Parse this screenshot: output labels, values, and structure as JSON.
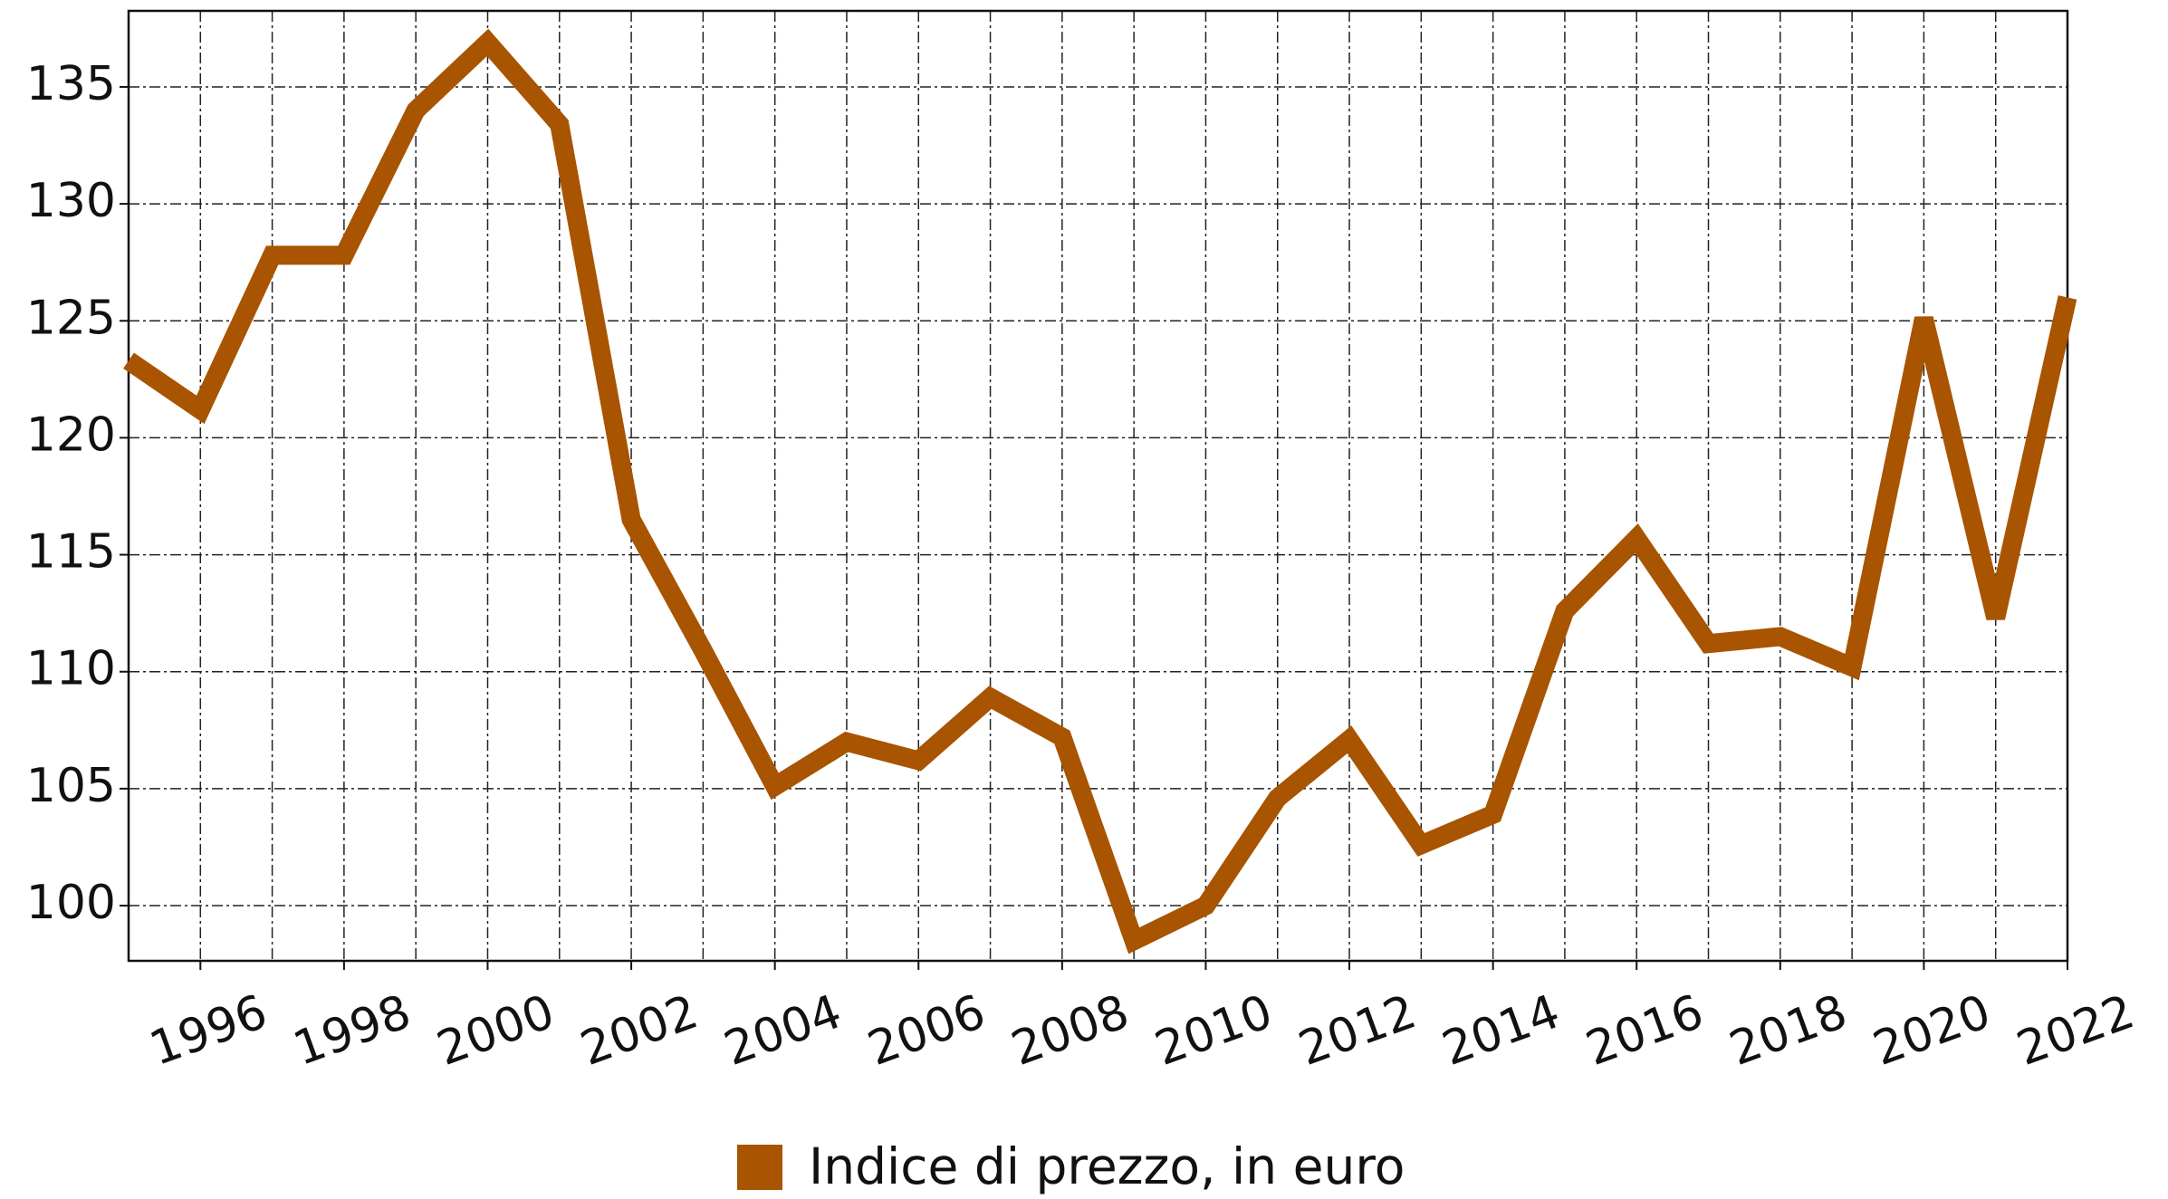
{
  "chart_data": {
    "type": "line",
    "x": [
      1995,
      1996,
      1997,
      1998,
      1999,
      2000,
      2001,
      2002,
      2003,
      2004,
      2005,
      2006,
      2007,
      2008,
      2009,
      2010,
      2011,
      2012,
      2013,
      2014,
      2015,
      2016,
      2017,
      2018,
      2019,
      2020,
      2021,
      2022
    ],
    "series": [
      {
        "name": "Indice di prezzo, in euro",
        "color": "#a85400",
        "values": [
          123.3,
          121.2,
          127.8,
          127.8,
          134.0,
          136.9,
          133.4,
          116.5,
          110.9,
          105.1,
          107.0,
          106.2,
          108.9,
          107.2,
          98.5,
          100.0,
          104.6,
          107.1,
          102.6,
          103.9,
          112.6,
          115.7,
          111.2,
          111.5,
          110.2,
          125.1,
          112.3,
          126.0
        ]
      }
    ],
    "xlim": [
      1995,
      2022
    ],
    "xticks": [
      1996,
      1998,
      2000,
      2002,
      2004,
      2006,
      2008,
      2010,
      2012,
      2014,
      2016,
      2018,
      2020,
      2022
    ],
    "ylim": [
      97.64,
      138.25
    ],
    "yticks": [
      100,
      105,
      110,
      115,
      120,
      125,
      130,
      135
    ],
    "grid": true,
    "legend": "bottom"
  }
}
